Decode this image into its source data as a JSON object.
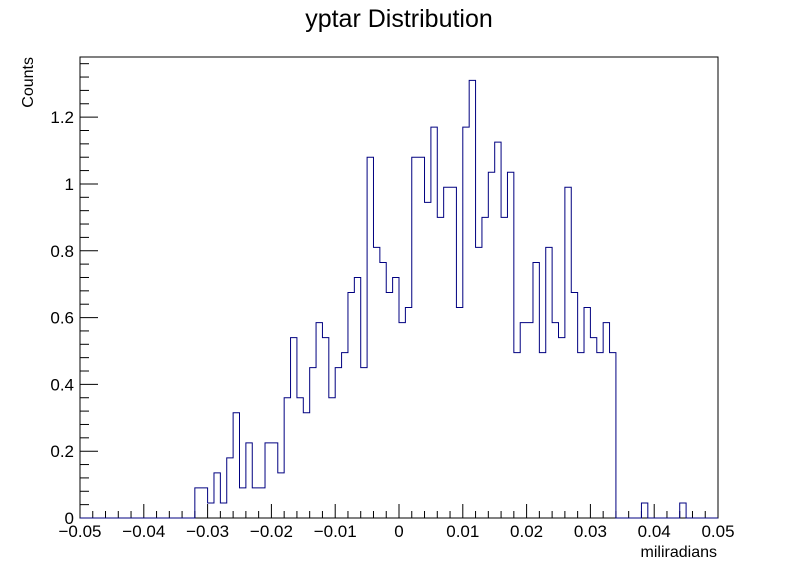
{
  "chart_data": {
    "type": "bar",
    "title": "yptar Distribution",
    "xlabel": "miliradians",
    "ylabel": "Counts",
    "xlim": [
      -0.05,
      0.05
    ],
    "ylim": [
      0,
      1.38
    ],
    "grid": false,
    "legend": "none",
    "colors": {
      "line": "#000080",
      "frame": "#000000",
      "background": "#ffffff"
    },
    "bin_width": 0.001,
    "x_ticks": [
      -0.05,
      -0.04,
      -0.03,
      -0.02,
      -0.01,
      0,
      0.01,
      0.02,
      0.03,
      0.04,
      0.05
    ],
    "x_tick_labels": [
      "−0.05",
      "−0.04",
      "−0.03",
      "−0.02",
      "−0.01",
      "0",
      "0.01",
      "0.02",
      "0.03",
      "0.04",
      "0.05"
    ],
    "y_ticks": [
      0,
      0.2,
      0.4,
      0.6,
      0.8,
      1,
      1.2
    ],
    "y_tick_labels": [
      "0",
      "0.2",
      "0.4",
      "0.6",
      "0.8",
      "1",
      "1.2"
    ],
    "bins": [
      {
        "x": -0.032,
        "y": 0.09
      },
      {
        "x": -0.031,
        "y": 0.09
      },
      {
        "x": -0.03,
        "y": 0.045
      },
      {
        "x": -0.029,
        "y": 0.135
      },
      {
        "x": -0.028,
        "y": 0.045
      },
      {
        "x": -0.027,
        "y": 0.18
      },
      {
        "x": -0.026,
        "y": 0.315
      },
      {
        "x": -0.025,
        "y": 0.09
      },
      {
        "x": -0.024,
        "y": 0.225
      },
      {
        "x": -0.023,
        "y": 0.09
      },
      {
        "x": -0.022,
        "y": 0.09
      },
      {
        "x": -0.021,
        "y": 0.225
      },
      {
        "x": -0.02,
        "y": 0.225
      },
      {
        "x": -0.019,
        "y": 0.135
      },
      {
        "x": -0.018,
        "y": 0.36
      },
      {
        "x": -0.017,
        "y": 0.54
      },
      {
        "x": -0.016,
        "y": 0.36
      },
      {
        "x": -0.015,
        "y": 0.315
      },
      {
        "x": -0.014,
        "y": 0.45
      },
      {
        "x": -0.013,
        "y": 0.585
      },
      {
        "x": -0.012,
        "y": 0.54
      },
      {
        "x": -0.011,
        "y": 0.36
      },
      {
        "x": -0.01,
        "y": 0.45
      },
      {
        "x": -0.009,
        "y": 0.495
      },
      {
        "x": -0.008,
        "y": 0.675
      },
      {
        "x": -0.007,
        "y": 0.72
      },
      {
        "x": -0.006,
        "y": 0.45
      },
      {
        "x": -0.005,
        "y": 1.08
      },
      {
        "x": -0.004,
        "y": 0.81
      },
      {
        "x": -0.003,
        "y": 0.765
      },
      {
        "x": -0.002,
        "y": 0.675
      },
      {
        "x": -0.001,
        "y": 0.72
      },
      {
        "x": 0.0,
        "y": 0.585
      },
      {
        "x": 0.001,
        "y": 0.63
      },
      {
        "x": 0.002,
        "y": 1.08
      },
      {
        "x": 0.003,
        "y": 1.08
      },
      {
        "x": 0.004,
        "y": 0.945
      },
      {
        "x": 0.005,
        "y": 1.17
      },
      {
        "x": 0.006,
        "y": 0.9
      },
      {
        "x": 0.007,
        "y": 0.99
      },
      {
        "x": 0.008,
        "y": 0.99
      },
      {
        "x": 0.009,
        "y": 0.63
      },
      {
        "x": 0.01,
        "y": 1.17
      },
      {
        "x": 0.011,
        "y": 1.31
      },
      {
        "x": 0.012,
        "y": 0.81
      },
      {
        "x": 0.013,
        "y": 0.9
      },
      {
        "x": 0.014,
        "y": 1.035
      },
      {
        "x": 0.015,
        "y": 1.125
      },
      {
        "x": 0.016,
        "y": 0.9
      },
      {
        "x": 0.017,
        "y": 1.035
      },
      {
        "x": 0.018,
        "y": 0.495
      },
      {
        "x": 0.019,
        "y": 0.585
      },
      {
        "x": 0.02,
        "y": 0.585
      },
      {
        "x": 0.021,
        "y": 0.765
      },
      {
        "x": 0.022,
        "y": 0.495
      },
      {
        "x": 0.023,
        "y": 0.81
      },
      {
        "x": 0.024,
        "y": 0.585
      },
      {
        "x": 0.025,
        "y": 0.54
      },
      {
        "x": 0.026,
        "y": 0.99
      },
      {
        "x": 0.027,
        "y": 0.675
      },
      {
        "x": 0.028,
        "y": 0.495
      },
      {
        "x": 0.029,
        "y": 0.63
      },
      {
        "x": 0.03,
        "y": 0.54
      },
      {
        "x": 0.031,
        "y": 0.495
      },
      {
        "x": 0.032,
        "y": 0.585
      },
      {
        "x": 0.033,
        "y": 0.495
      },
      {
        "x": 0.038,
        "y": 0.045
      },
      {
        "x": 0.044,
        "y": 0.045
      }
    ]
  }
}
